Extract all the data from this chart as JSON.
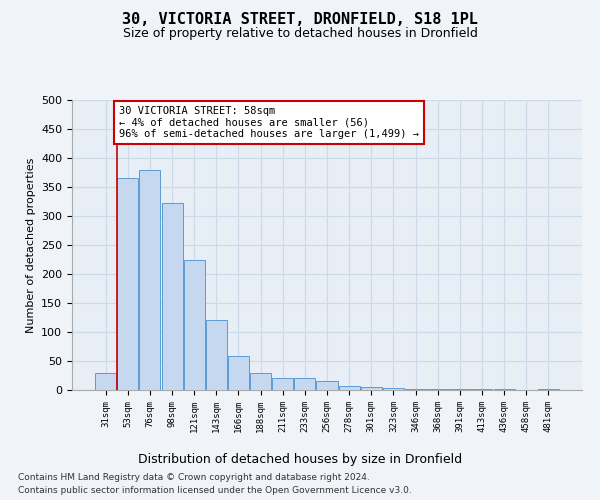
{
  "title": "30, VICTORIA STREET, DRONFIELD, S18 1PL",
  "subtitle": "Size of property relative to detached houses in Dronfield",
  "xlabel": "Distribution of detached houses by size in Dronfield",
  "ylabel": "Number of detached properties",
  "bar_labels": [
    "31sqm",
    "53sqm",
    "76sqm",
    "98sqm",
    "121sqm",
    "143sqm",
    "166sqm",
    "188sqm",
    "211sqm",
    "233sqm",
    "256sqm",
    "278sqm",
    "301sqm",
    "323sqm",
    "346sqm",
    "368sqm",
    "391sqm",
    "413sqm",
    "436sqm",
    "458sqm",
    "481sqm"
  ],
  "bar_values": [
    30,
    365,
    380,
    323,
    225,
    120,
    58,
    30,
    20,
    20,
    15,
    7,
    5,
    3,
    1,
    1,
    1,
    1,
    1,
    0,
    2
  ],
  "bar_color": "#c5d8f0",
  "bar_edge_color": "#5b9bd5",
  "vline_x": 0.5,
  "vline_color": "#cc0000",
  "ylim": [
    0,
    500
  ],
  "yticks": [
    0,
    50,
    100,
    150,
    200,
    250,
    300,
    350,
    400,
    450,
    500
  ],
  "annotation_text": "30 VICTORIA STREET: 58sqm\n← 4% of detached houses are smaller (56)\n96% of semi-detached houses are larger (1,499) →",
  "annotation_box_color": "#ffffff",
  "annotation_box_edge": "#cc0000",
  "footer_line1": "Contains HM Land Registry data © Crown copyright and database right 2024.",
  "footer_line2": "Contains public sector information licensed under the Open Government Licence v3.0.",
  "grid_color": "#ccd9e8",
  "fig_bg_color": "#f0f4f8",
  "plot_bg_color": "#e8eef5",
  "title_fontsize": 11,
  "subtitle_fontsize": 9
}
